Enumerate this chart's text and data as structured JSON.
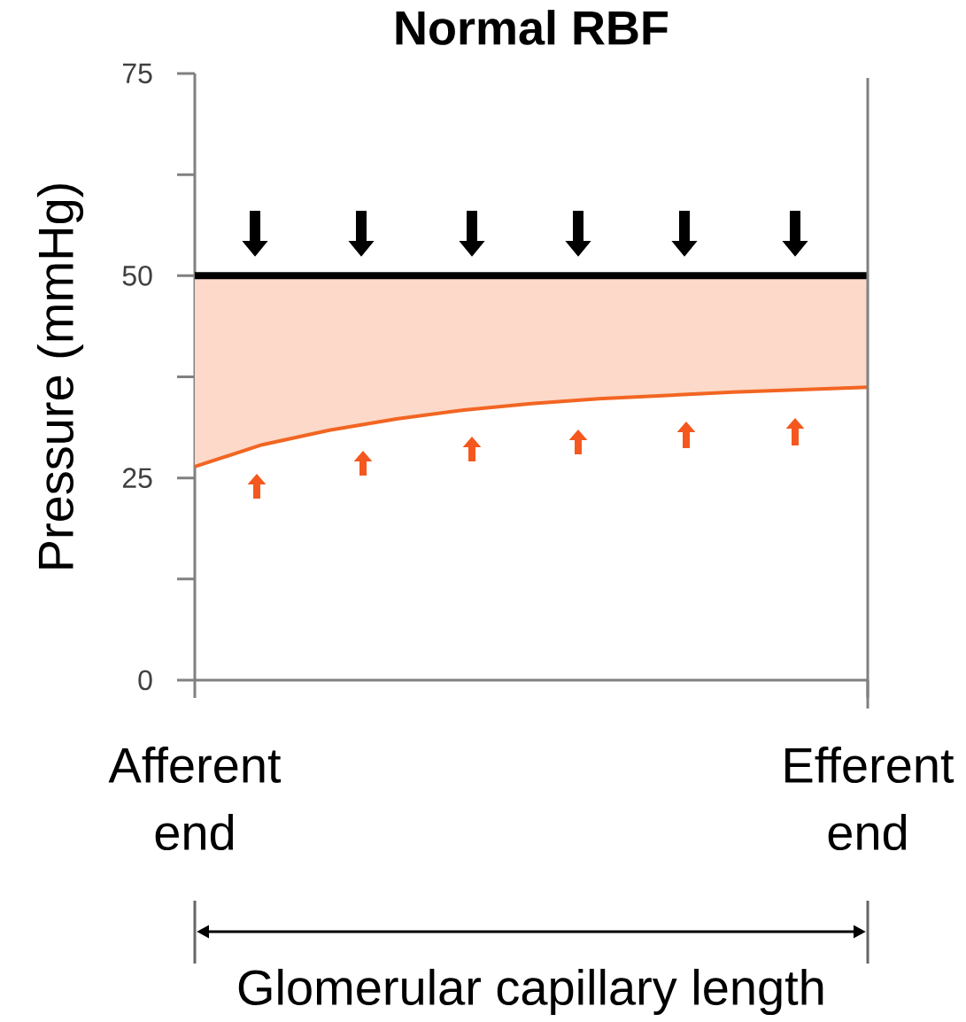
{
  "chart_data": {
    "type": "line",
    "title": "Normal RBF",
    "xlabel": "Glomerular capillary length",
    "ylabel": "Pressure (mmHg)",
    "categories": [
      "Afferent end",
      null,
      null,
      null,
      null,
      null,
      null,
      null,
      null,
      null,
      "Efferent end"
    ],
    "ylim": [
      0,
      75
    ],
    "yticks": [
      0,
      25,
      50,
      75
    ],
    "series": [
      {
        "color": "#f26522",
        "values": [
          26.4,
          29.1,
          30.9,
          32.3,
          33.4,
          34.2,
          34.8,
          35.2,
          35.6,
          35.9,
          36.2
        ],
        "lower": [
          26.4,
          29.1,
          30.9,
          32.3,
          33.4,
          34.2,
          34.8,
          35.2,
          35.6,
          35.9,
          36.2
        ],
        "upper": [
          50,
          50,
          50,
          50,
          50,
          50,
          50,
          50,
          50,
          50,
          50
        ]
      },
      {
        "color": "#000000",
        "values": [
          50,
          50,
          50,
          50,
          50,
          50,
          50,
          50,
          50,
          50,
          50
        ]
      }
    ]
  }
}
